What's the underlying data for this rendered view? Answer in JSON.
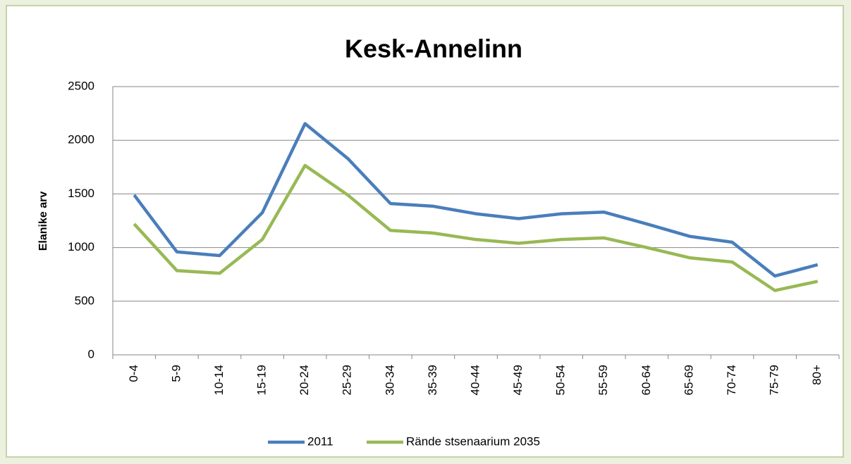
{
  "chart_data": {
    "type": "line",
    "title": "Kesk-Annelinn",
    "ylabel": "Elanike arv",
    "categories": [
      "0-4",
      "5-9",
      "10-14",
      "15-19",
      "20-24",
      "25-29",
      "30-34",
      "35-39",
      "40-44",
      "45-49",
      "50-54",
      "55-59",
      "60-64",
      "65-69",
      "70-74",
      "75-79",
      "80+"
    ],
    "series": [
      {
        "name": "2011",
        "color": "#4a7ebb",
        "values": [
          1490,
          960,
          925,
          1325,
          2155,
          1830,
          1410,
          1385,
          1315,
          1270,
          1315,
          1330,
          1220,
          1105,
          1050,
          735,
          840
        ]
      },
      {
        "name": "Rände stsenaarium 2035",
        "color": "#98b954",
        "values": [
          1220,
          785,
          760,
          1075,
          1765,
          1490,
          1160,
          1135,
          1075,
          1040,
          1075,
          1090,
          1000,
          905,
          865,
          600,
          685
        ]
      }
    ],
    "ylim": [
      0,
      2500
    ],
    "yticks": [
      0,
      500,
      1000,
      1500,
      2000,
      2500
    ],
    "grid": true,
    "legend": "bottom"
  }
}
